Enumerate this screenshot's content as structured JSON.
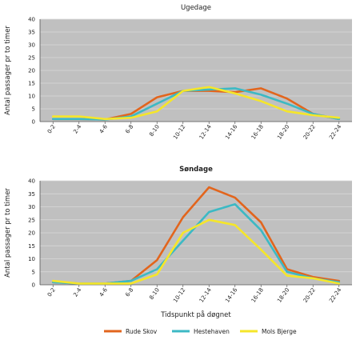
{
  "colors": {
    "Rude Skov": "#e2651d",
    "Hestehaven": "#3cb9c4",
    "Mols Bjerge": "#f5e62a",
    "plot_bg": "#c0c0c0",
    "grid": "#d9d9d9"
  },
  "shared": {
    "ylabel": "Antal passager pr to timer",
    "xlabel": "Tidspunkt på døgnet",
    "legend_position": "bottom"
  },
  "chart_data": [
    {
      "type": "line",
      "title": "Ugedage",
      "ylabel": "Antal passager pr to timer",
      "categories": [
        "0-2",
        "2-4",
        "4-6",
        "6-8",
        "8-10",
        "10-12",
        "12-14",
        "14-16",
        "16-18",
        "18-20",
        "20-22",
        "22-24"
      ],
      "ylim": [
        0,
        40
      ],
      "yticks": [
        0,
        5,
        10,
        15,
        20,
        25,
        30,
        35,
        40
      ],
      "grid": true,
      "series": [
        {
          "name": "Rude Skov",
          "values": [
            1,
            1,
            0.8,
            3,
            9.5,
            12,
            12,
            11.5,
            13,
            9,
            3,
            1
          ]
        },
        {
          "name": "Hestehaven",
          "values": [
            1,
            1,
            0.8,
            2,
            7,
            12,
            12.5,
            13,
            10.5,
            7,
            3,
            1
          ]
        },
        {
          "name": "Mols Bjerge",
          "values": [
            2,
            2,
            1,
            1.5,
            4,
            12,
            13.5,
            11,
            8,
            4,
            2.5,
            1.5
          ]
        }
      ]
    },
    {
      "type": "line",
      "title": "Søndage",
      "ylabel": "Antal passager pr to timer",
      "xlabel": "Tidspunkt på døgnet",
      "categories": [
        "0-2",
        "2-4",
        "4-6",
        "6-8",
        "8-10",
        "10-12",
        "12-14",
        "14-16",
        "16-18",
        "18-20",
        "20-22",
        "22-24"
      ],
      "ylim": [
        0,
        40
      ],
      "yticks": [
        0,
        5,
        10,
        15,
        20,
        25,
        30,
        35,
        40
      ],
      "grid": true,
      "series": [
        {
          "name": "Rude Skov",
          "values": [
            1,
            0.5,
            0.5,
            1.5,
            9.5,
            26,
            37.5,
            33.5,
            24,
            6,
            3,
            1.5
          ]
        },
        {
          "name": "Hestehaven",
          "values": [
            1,
            0.5,
            0.5,
            1.5,
            6,
            17,
            28,
            31,
            21,
            5,
            2.5,
            1
          ]
        },
        {
          "name": "Mols Bjerge",
          "values": [
            1.5,
            0.5,
            0.5,
            0.5,
            4,
            20,
            25,
            23,
            13.5,
            3.5,
            2.5,
            0.5
          ]
        }
      ]
    }
  ]
}
